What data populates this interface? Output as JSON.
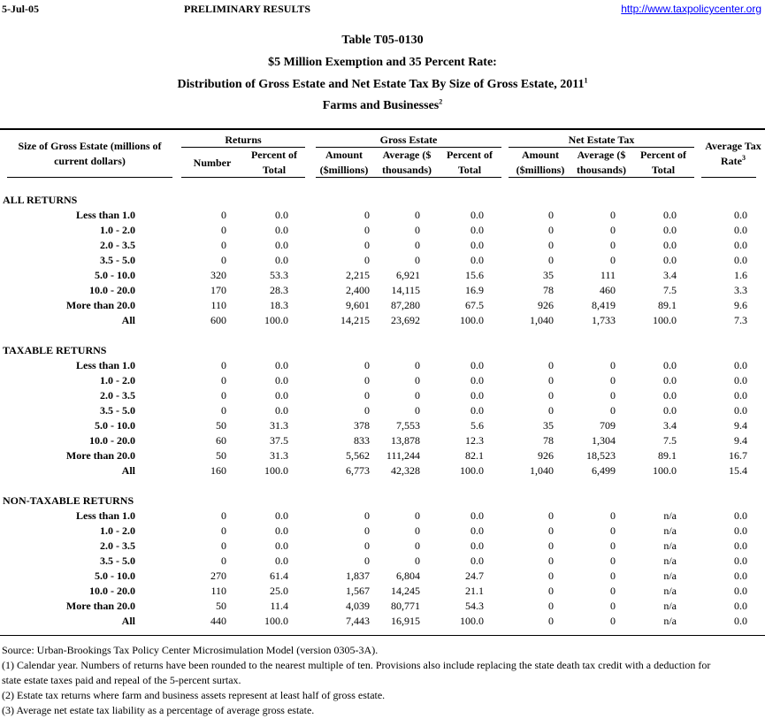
{
  "header": {
    "date": "5-Jul-05",
    "status": "PRELIMINARY RESULTS",
    "url": "http://www.taxpolicycenter.org"
  },
  "title": {
    "table_id": "Table T05-0130",
    "line1": "$5 Million Exemption and 35 Percent Rate:",
    "line2": "Distribution of Gross Estate and Net Estate Tax By Size of Gross Estate, 2011",
    "line2_sup": "1",
    "line3": "Farms and Businesses",
    "line3_sup": "2"
  },
  "columns": {
    "size": "Size of Gross Estate (millions of current dollars)",
    "groups": [
      "Returns",
      "Gross Estate",
      "Net Estate Tax"
    ],
    "sub": [
      "Number",
      "Percent of Total",
      "Amount ($millions)",
      "Average ($ thousands)",
      "Percent of Total",
      "Amount ($millions)",
      "Average ($ thousands)",
      "Percent of Total"
    ],
    "rate": "Average Tax Rate",
    "rate_sup": "3"
  },
  "sections": [
    {
      "title": "ALL RETURNS",
      "rows": [
        {
          "label": "Less than 1.0",
          "cells": [
            "0",
            "0.0",
            "0",
            "0",
            "0.0",
            "0",
            "0",
            "0.0",
            "0.0"
          ]
        },
        {
          "label": "1.0 - 2.0",
          "cells": [
            "0",
            "0.0",
            "0",
            "0",
            "0.0",
            "0",
            "0",
            "0.0",
            "0.0"
          ]
        },
        {
          "label": "2.0 - 3.5",
          "cells": [
            "0",
            "0.0",
            "0",
            "0",
            "0.0",
            "0",
            "0",
            "0.0",
            "0.0"
          ]
        },
        {
          "label": "3.5 - 5.0",
          "cells": [
            "0",
            "0.0",
            "0",
            "0",
            "0.0",
            "0",
            "0",
            "0.0",
            "0.0"
          ]
        },
        {
          "label": "5.0 - 10.0",
          "cells": [
            "320",
            "53.3",
            "2,215",
            "6,921",
            "15.6",
            "35",
            "111",
            "3.4",
            "1.6"
          ]
        },
        {
          "label": "10.0 - 20.0",
          "cells": [
            "170",
            "28.3",
            "2,400",
            "14,115",
            "16.9",
            "78",
            "460",
            "7.5",
            "3.3"
          ]
        },
        {
          "label": "More than 20.0",
          "cells": [
            "110",
            "18.3",
            "9,601",
            "87,280",
            "67.5",
            "926",
            "8,419",
            "89.1",
            "9.6"
          ]
        },
        {
          "label": "All",
          "cells": [
            "600",
            "100.0",
            "14,215",
            "23,692",
            "100.0",
            "1,040",
            "1,733",
            "100.0",
            "7.3"
          ]
        }
      ]
    },
    {
      "title": "TAXABLE RETURNS",
      "rows": [
        {
          "label": "Less than 1.0",
          "cells": [
            "0",
            "0.0",
            "0",
            "0",
            "0.0",
            "0",
            "0",
            "0.0",
            "0.0"
          ]
        },
        {
          "label": "1.0 - 2.0",
          "cells": [
            "0",
            "0.0",
            "0",
            "0",
            "0.0",
            "0",
            "0",
            "0.0",
            "0.0"
          ]
        },
        {
          "label": "2.0 - 3.5",
          "cells": [
            "0",
            "0.0",
            "0",
            "0",
            "0.0",
            "0",
            "0",
            "0.0",
            "0.0"
          ]
        },
        {
          "label": "3.5 - 5.0",
          "cells": [
            "0",
            "0.0",
            "0",
            "0",
            "0.0",
            "0",
            "0",
            "0.0",
            "0.0"
          ]
        },
        {
          "label": "5.0 - 10.0",
          "cells": [
            "50",
            "31.3",
            "378",
            "7,553",
            "5.6",
            "35",
            "709",
            "3.4",
            "9.4"
          ]
        },
        {
          "label": "10.0 - 20.0",
          "cells": [
            "60",
            "37.5",
            "833",
            "13,878",
            "12.3",
            "78",
            "1,304",
            "7.5",
            "9.4"
          ]
        },
        {
          "label": "More than 20.0",
          "cells": [
            "50",
            "31.3",
            "5,562",
            "111,244",
            "82.1",
            "926",
            "18,523",
            "89.1",
            "16.7"
          ]
        },
        {
          "label": "All",
          "cells": [
            "160",
            "100.0",
            "6,773",
            "42,328",
            "100.0",
            "1,040",
            "6,499",
            "100.0",
            "15.4"
          ]
        }
      ]
    },
    {
      "title": "NON-TAXABLE RETURNS",
      "rows": [
        {
          "label": "Less than 1.0",
          "cells": [
            "0",
            "0.0",
            "0",
            "0",
            "0.0",
            "0",
            "0",
            "n/a",
            "0.0"
          ]
        },
        {
          "label": "1.0 - 2.0",
          "cells": [
            "0",
            "0.0",
            "0",
            "0",
            "0.0",
            "0",
            "0",
            "n/a",
            "0.0"
          ]
        },
        {
          "label": "2.0 - 3.5",
          "cells": [
            "0",
            "0.0",
            "0",
            "0",
            "0.0",
            "0",
            "0",
            "n/a",
            "0.0"
          ]
        },
        {
          "label": "3.5 - 5.0",
          "cells": [
            "0",
            "0.0",
            "0",
            "0",
            "0.0",
            "0",
            "0",
            "n/a",
            "0.0"
          ]
        },
        {
          "label": "5.0 - 10.0",
          "cells": [
            "270",
            "61.4",
            "1,837",
            "6,804",
            "24.7",
            "0",
            "0",
            "n/a",
            "0.0"
          ]
        },
        {
          "label": "10.0 - 20.0",
          "cells": [
            "110",
            "25.0",
            "1,567",
            "14,245",
            "21.1",
            "0",
            "0",
            "n/a",
            "0.0"
          ]
        },
        {
          "label": "More than 20.0",
          "cells": [
            "50",
            "11.4",
            "4,039",
            "80,771",
            "54.3",
            "0",
            "0",
            "n/a",
            "0.0"
          ]
        },
        {
          "label": "All",
          "cells": [
            "440",
            "100.0",
            "7,443",
            "16,915",
            "100.0",
            "0",
            "0",
            "n/a",
            "0.0"
          ]
        }
      ]
    }
  ],
  "footnotes": [
    "Source: Urban-Brookings Tax Policy Center Microsimulation Model (version 0305-3A).",
    "(1) Calendar year. Numbers of returns have been rounded to the nearest multiple of ten. Provisions also include replacing the state death tax credit with a deduction for state estate taxes paid and repeal of the 5-percent surtax.",
    "(2) Estate tax returns where farm and business assets represent at least half of gross estate.",
    "(3) Average net estate tax liability as a percentage of average gross estate."
  ]
}
